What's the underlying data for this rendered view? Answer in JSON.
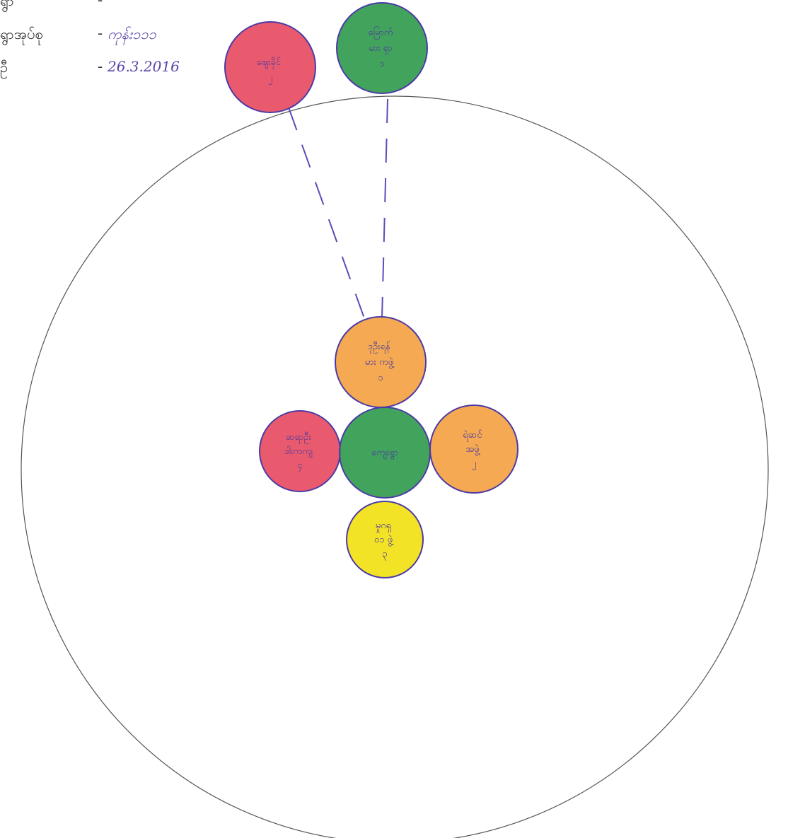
{
  "header": {
    "rows": [
      {
        "label": "ရွာ",
        "value": ""
      },
      {
        "label": "ရွာအုပ်စု",
        "value": "ကုန်း၁၁၁"
      },
      {
        "label": "ဦ",
        "value": "26.3.2016"
      }
    ]
  },
  "colors": {
    "red": "#e8485e",
    "green": "#2e9a4a",
    "orange": "#f4a040",
    "yellow": "#f2e21a",
    "outline": "#4b3aa6",
    "connector": "#5c4bb8",
    "boundary": "#555555"
  },
  "nodes": [
    {
      "id": "external-red",
      "color": "red",
      "lines": [
        "ဈေးခိုင်",
        "၂"
      ]
    },
    {
      "id": "external-green",
      "color": "green",
      "lines": [
        "မြောက်",
        "မား ရှာ",
        "၁"
      ]
    },
    {
      "id": "center-top-orange",
      "color": "orange",
      "lines": [
        "ဒုဦးရန်",
        "မား ကဖွဲ့",
        "၁"
      ]
    },
    {
      "id": "center-left-red",
      "color": "red",
      "lines": [
        "ဆရာဦး",
        "ဒါးကကျ",
        "၄"
      ]
    },
    {
      "id": "center-middle-green",
      "color": "green",
      "lines": [
        "ကျေးရွာ"
      ]
    },
    {
      "id": "center-right-orange",
      "color": "orange",
      "lines": [
        "ရဲဆင်",
        "အဖွဲ့",
        "၂"
      ]
    },
    {
      "id": "center-bottom-yellow",
      "color": "yellow",
      "lines": [
        "မှုဂရှ",
        "၀၁ ဖွဲ့",
        "၃"
      ]
    }
  ]
}
